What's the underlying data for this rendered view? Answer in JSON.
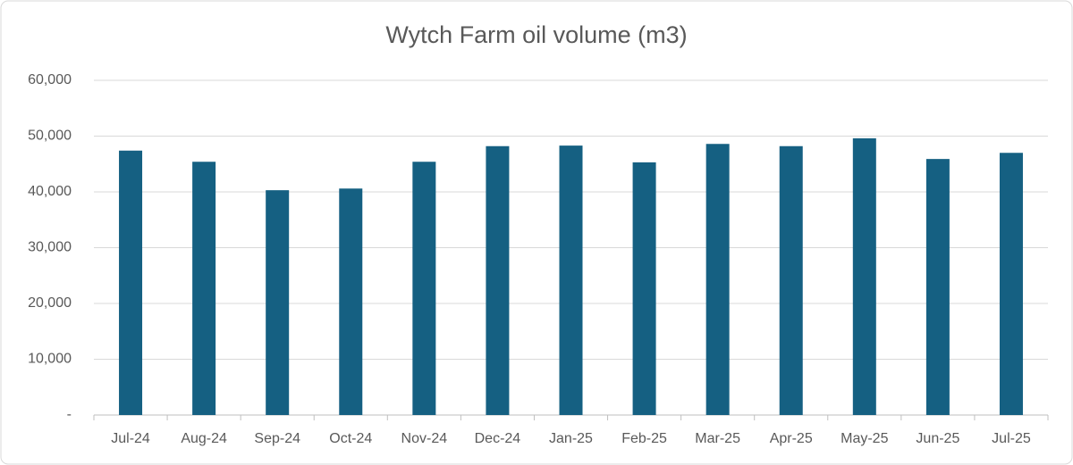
{
  "chart_data": {
    "type": "bar",
    "title": "Wytch Farm oil volume (m3)",
    "categories": [
      "Jul-24",
      "Aug-24",
      "Sep-24",
      "Oct-24",
      "Nov-24",
      "Dec-24",
      "Jan-25",
      "Feb-25",
      "Mar-25",
      "Apr-25",
      "May-25",
      "Jun-25",
      "Jul-25"
    ],
    "values": [
      47400,
      45400,
      40300,
      40600,
      45400,
      48200,
      48300,
      45300,
      48600,
      48200,
      49600,
      45900,
      47000
    ],
    "color": "#156082",
    "ylim": [
      0,
      60000
    ],
    "yticks": [
      {
        "value": 0,
        "label": "-"
      },
      {
        "value": 10000,
        "label": "10,000"
      },
      {
        "value": 20000,
        "label": "20,000"
      },
      {
        "value": 30000,
        "label": "30,000"
      },
      {
        "value": 40000,
        "label": "40,000"
      },
      {
        "value": 50000,
        "label": "50,000"
      },
      {
        "value": 60000,
        "label": "60,000"
      }
    ],
    "grid": true
  }
}
